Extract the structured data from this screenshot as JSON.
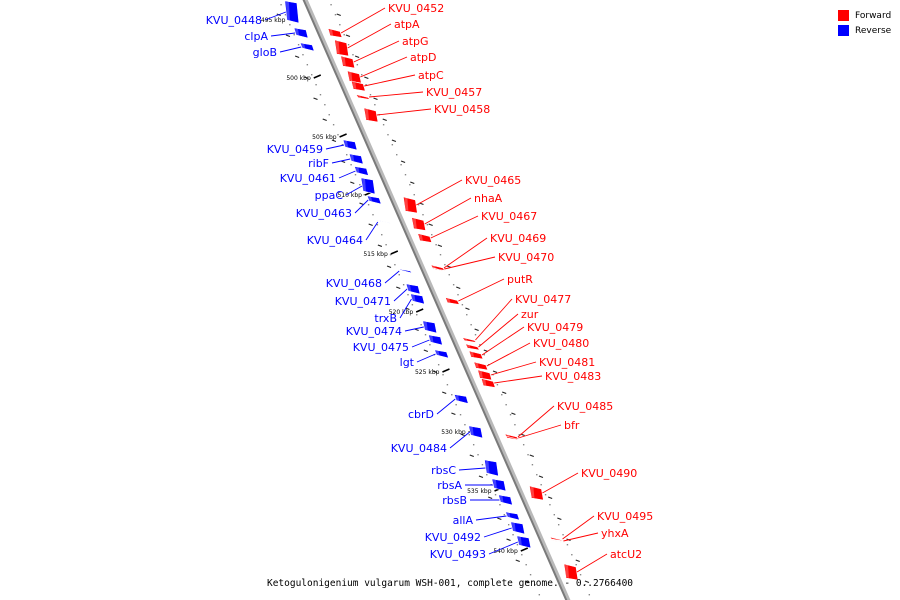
{
  "legend": {
    "forward_label": "Forward",
    "reverse_label": "Reverse",
    "forward_color": "#ff0000",
    "reverse_color": "#0000ff"
  },
  "caption": "Ketogulonigenium vulgarum WSH-001, complete genome. - 0..2766400",
  "kbp_ticks": [
    "495 kbp",
    "500 kbp",
    "505 kbp",
    "510 kbp",
    "515 kbp",
    "520 kbp",
    "525 kbp",
    "530 kbp",
    "535 kbp",
    "540 kbp"
  ],
  "forward_genes": [
    "KVU_0452",
    "atpA",
    "atpG",
    "atpD",
    "atpC",
    "KVU_0457",
    "KVU_0458",
    "KVU_0465",
    "nhaA",
    "KVU_0467",
    "KVU_0469",
    "KVU_0470",
    "putR",
    "KVU_0477",
    "zur",
    "KVU_0479",
    "KVU_0480",
    "KVU_0481",
    "KVU_0483",
    "KVU_0485",
    "bfr",
    "KVU_0490",
    "KVU_0495",
    "yhxA",
    "atcU2"
  ],
  "reverse_genes": [
    "KVU_0448",
    "clpA",
    "gloB",
    "KVU_0459",
    "ribF",
    "KVU_0461",
    "ppaC",
    "KVU_0463",
    "KVU_0464",
    "KVU_0468",
    "KVU_0471",
    "trxB",
    "KVU_0474",
    "KVU_0475",
    "lgt",
    "cbrD",
    "KVU_0484",
    "rbsC",
    "rbsA",
    "rbsB",
    "allA",
    "KVU_0492",
    "KVU_0493"
  ]
}
